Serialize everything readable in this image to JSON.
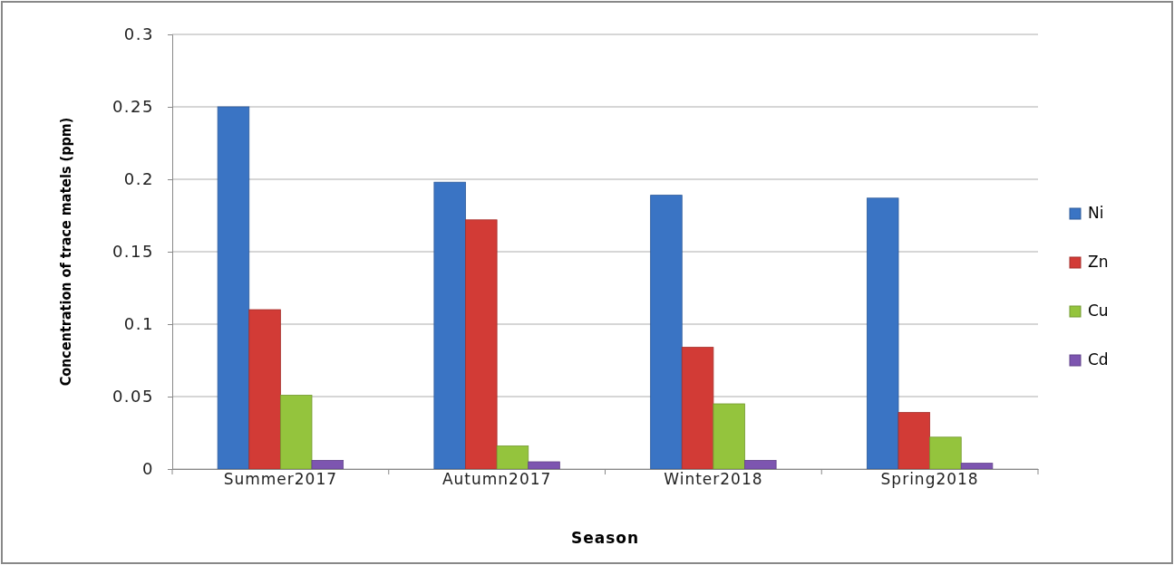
{
  "chart_data": {
    "type": "bar",
    "xlabel": "Season",
    "ylabel": "Concentration of trace matels (ppm)",
    "categories": [
      "Summer2017",
      "Autumn2017",
      "Winter2018",
      "Spring2018"
    ],
    "series": [
      {
        "name": "Ni",
        "color": "#3a74c4",
        "values": [
          0.25,
          0.198,
          0.189,
          0.187
        ]
      },
      {
        "name": "Zn",
        "color": "#d23b36",
        "values": [
          0.11,
          0.172,
          0.084,
          0.039
        ]
      },
      {
        "name": "Cu",
        "color": "#94c43d",
        "values": [
          0.051,
          0.016,
          0.045,
          0.022
        ]
      },
      {
        "name": "Cd",
        "color": "#7d55b0",
        "values": [
          0.006,
          0.005,
          0.006,
          0.004
        ]
      }
    ],
    "ylim": [
      0,
      0.3
    ],
    "yticks": [
      0,
      0.05,
      0.1,
      0.15,
      0.2,
      0.25,
      0.3
    ],
    "grid": "y",
    "legend": "right"
  }
}
